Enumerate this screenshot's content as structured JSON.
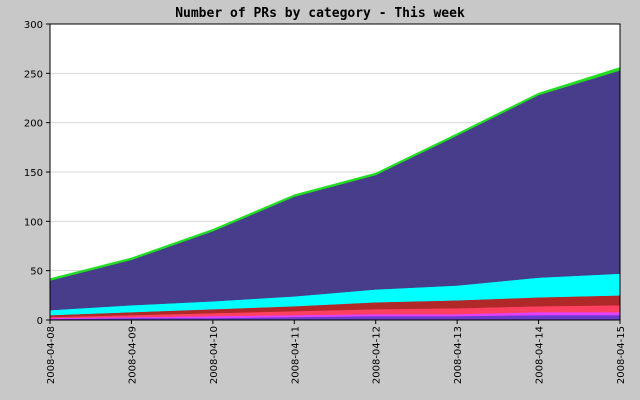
{
  "chart_data": {
    "type": "area",
    "stacked": true,
    "title": "Number of PRs by category - This week",
    "xlabel": "",
    "ylabel": "",
    "x": [
      "2008-04-08",
      "2008-04-09",
      "2008-04-10",
      "2008-04-11",
      "2008-04-12",
      "2008-04-13",
      "2008-04-14",
      "2008-04-15"
    ],
    "ylim": [
      0,
      300
    ],
    "yticks": [
      0,
      50,
      100,
      150,
      200,
      250,
      300
    ],
    "grid": true,
    "legend": "none",
    "series": [
      {
        "color": "#6a3acb",
        "values": [
          1,
          2,
          2,
          3,
          4,
          4,
          5,
          5
        ]
      },
      {
        "color": "#e040ff",
        "values": [
          1,
          1,
          2,
          2,
          2,
          2,
          3,
          3
        ]
      },
      {
        "color": "#ff4060",
        "values": [
          1,
          2,
          3,
          4,
          5,
          6,
          6,
          7
        ]
      },
      {
        "color": "#b02828",
        "values": [
          2,
          3,
          4,
          5,
          7,
          8,
          9,
          10
        ]
      },
      {
        "color": "#00ffff",
        "values": [
          5,
          7,
          8,
          10,
          13,
          15,
          20,
          22
        ]
      },
      {
        "color": "#483d8b",
        "values": [
          30,
          46,
          71,
          101,
          116,
          152,
          185,
          206
        ]
      },
      {
        "color": "#22dd22",
        "values": [
          2,
          2,
          2,
          2,
          2,
          2,
          2,
          3
        ]
      }
    ]
  }
}
